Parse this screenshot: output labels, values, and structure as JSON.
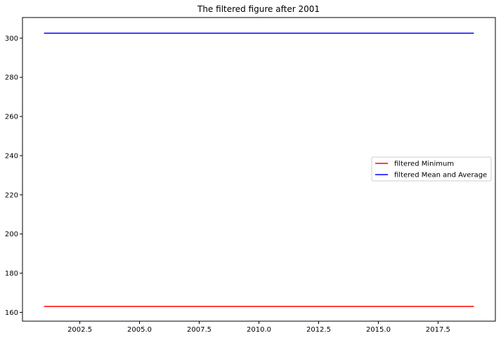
{
  "chart_data": {
    "type": "line",
    "title": "The filtered figure after 2001",
    "xlabel": "",
    "ylabel": "",
    "xlim": [
      2000.1,
      2019.9
    ],
    "ylim": [
      155.5,
      310.5
    ],
    "x_ticks": [
      2002.5,
      2005.0,
      2007.5,
      2010.0,
      2012.5,
      2015.0,
      2017.5
    ],
    "x_tick_labels": [
      "2002.5",
      "2005.0",
      "2007.5",
      "2010.0",
      "2012.5",
      "2015.0",
      "2017.5"
    ],
    "y_ticks": [
      160,
      180,
      200,
      220,
      240,
      260,
      280,
      300
    ],
    "y_tick_labels": [
      "160",
      "180",
      "200",
      "220",
      "240",
      "260",
      "280",
      "300"
    ],
    "grid": false,
    "legend_position": "center-right",
    "series": [
      {
        "name": "filtered Minimum",
        "color": "#ff0000",
        "x": [
          2001,
          2019
        ],
        "y": [
          163,
          163
        ]
      },
      {
        "name": "filtered Mean and Average",
        "color": "#0000ff",
        "x": [
          2001,
          2019
        ],
        "y": [
          302.5,
          302.5
        ]
      }
    ]
  }
}
